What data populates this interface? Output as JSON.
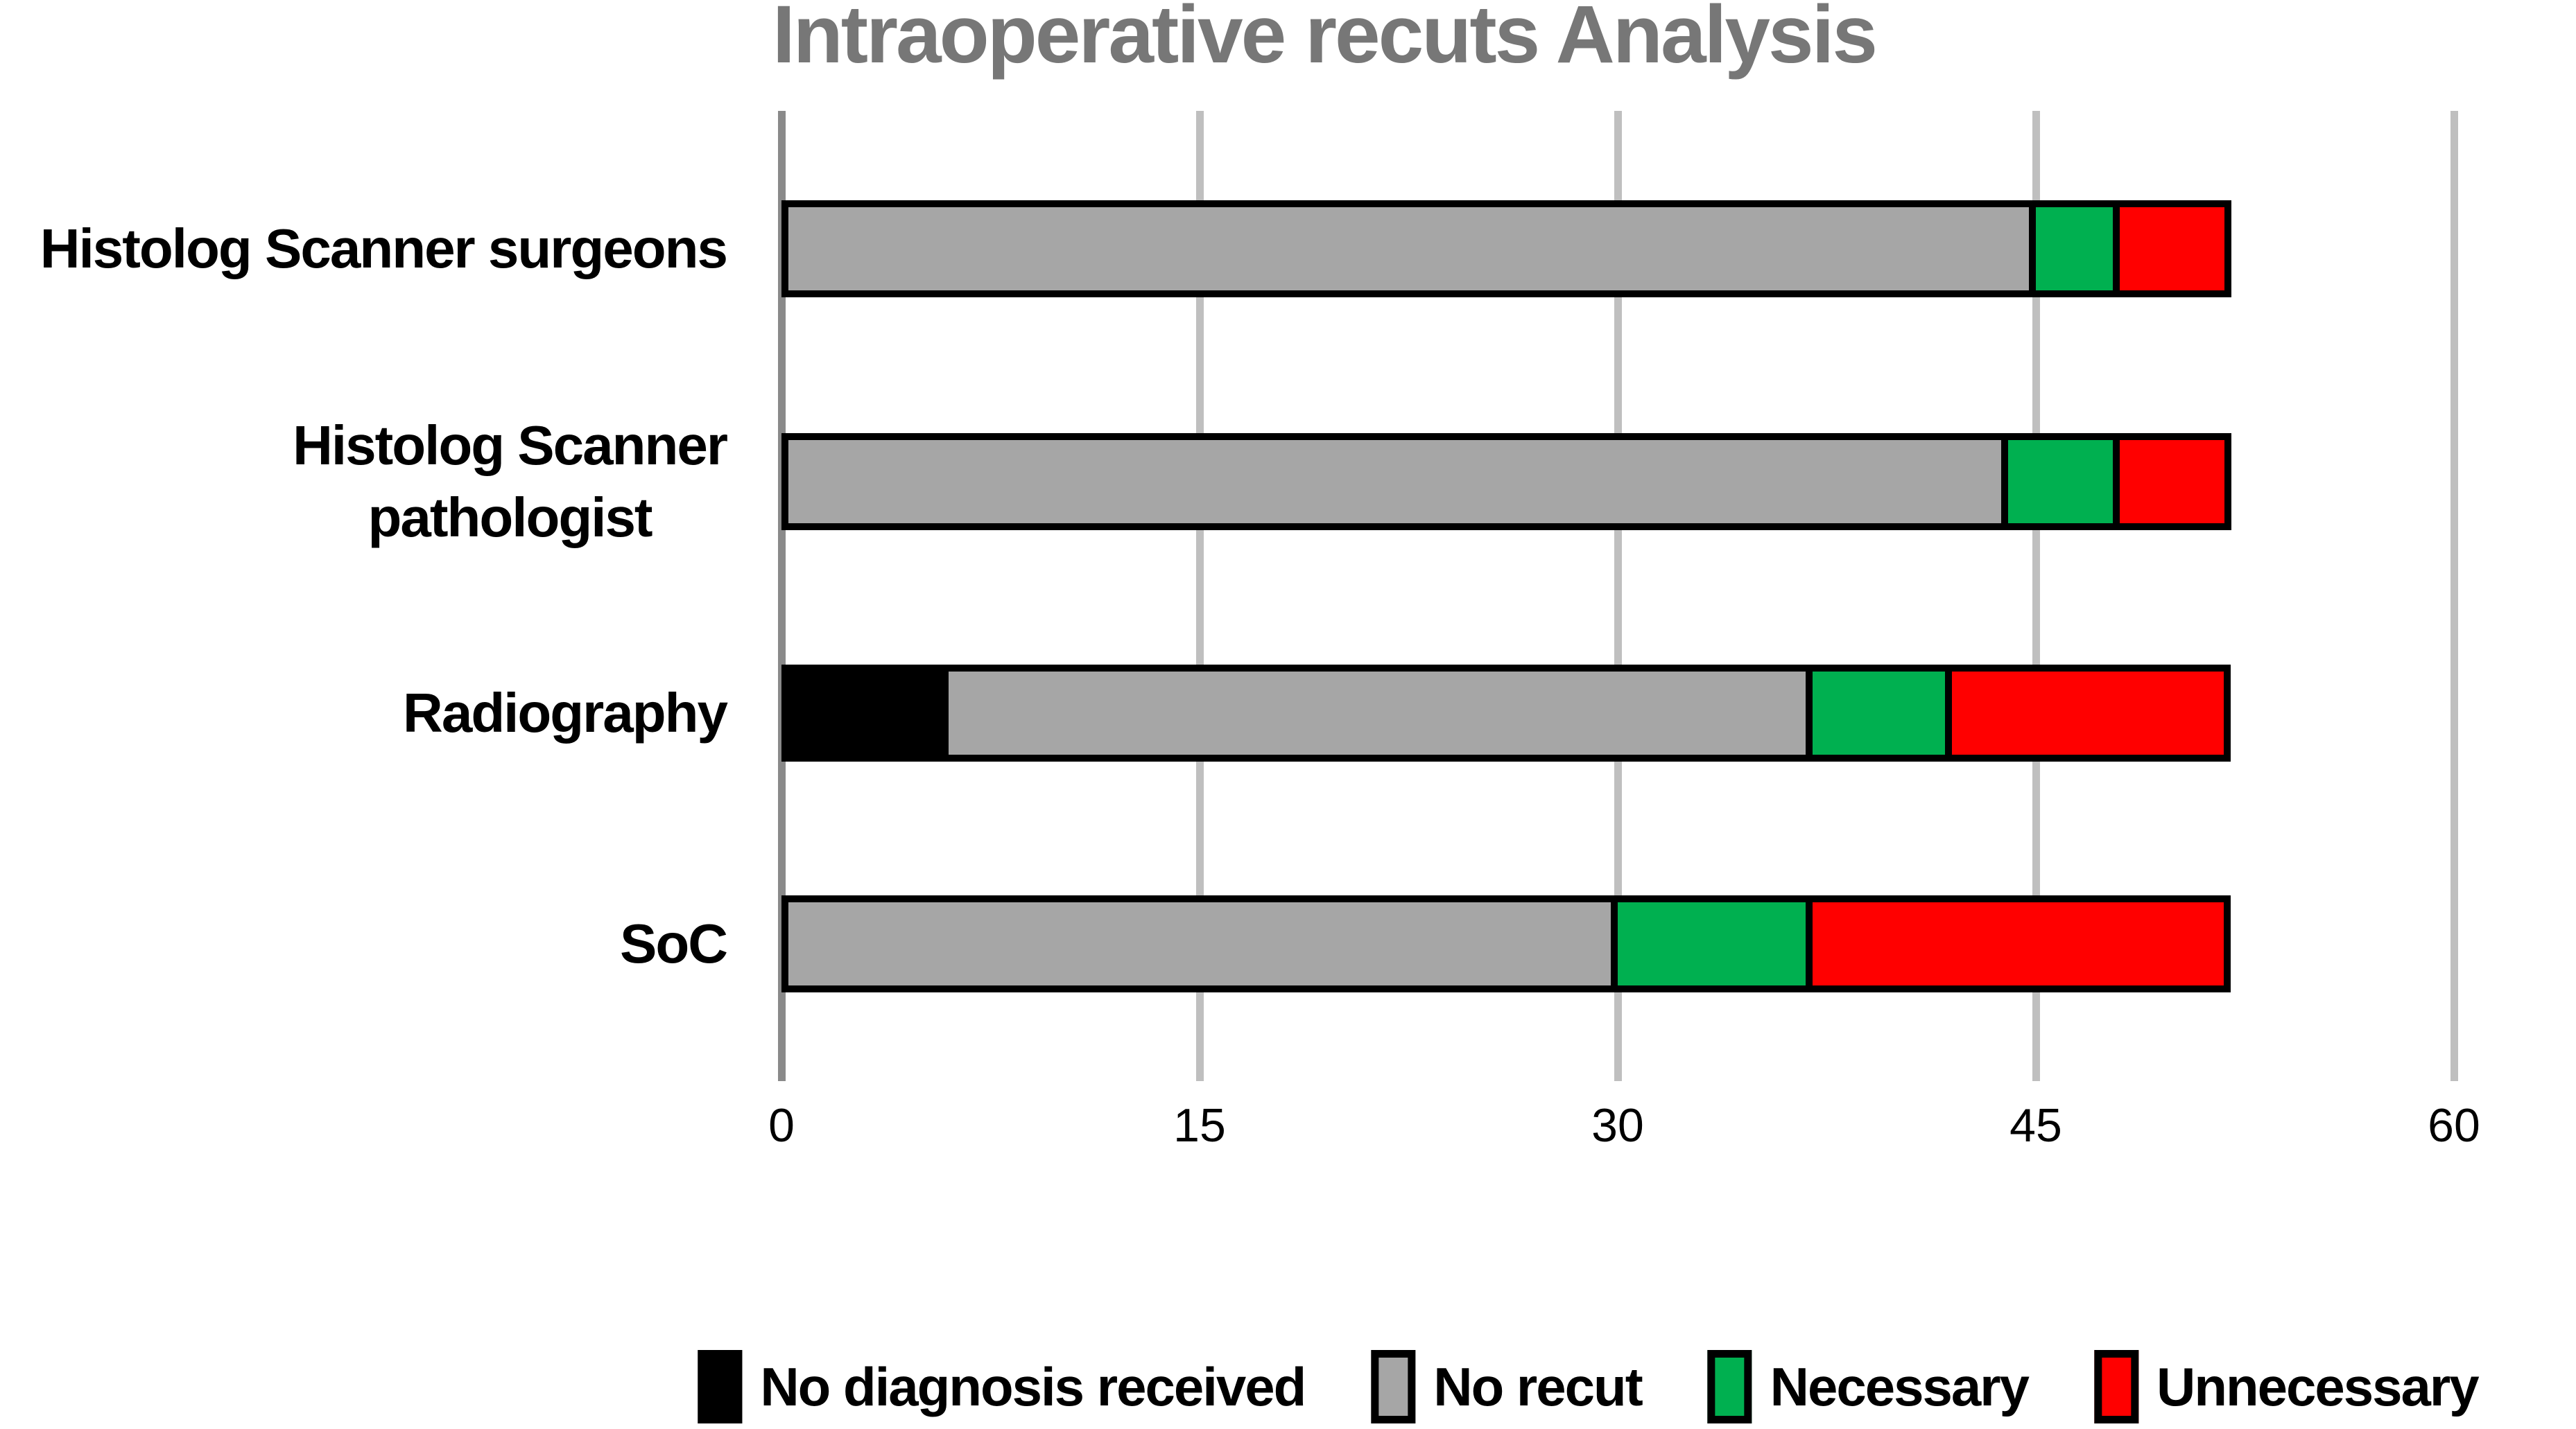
{
  "title": "Intraoperative recuts Analysis",
  "chart_data": {
    "type": "bar",
    "orientation": "horizontal",
    "stacked": true,
    "title": "Intraoperative recuts Analysis",
    "categories": [
      "Histolog Scanner surgeons",
      "Histolog Scanner pathologist",
      "Radiography",
      "SoC"
    ],
    "category_display_lines": [
      [
        "Histolog Scanner surgeons"
      ],
      [
        "Histolog Scanner",
        "pathologist"
      ],
      [
        "Radiography"
      ],
      [
        "SoC"
      ]
    ],
    "series": [
      {
        "name": "No diagnosis received",
        "color": "#000000",
        "values": [
          0,
          0,
          6,
          0
        ]
      },
      {
        "name": "No recut",
        "color": "#A6A6A6",
        "values": [
          45,
          44,
          31,
          30
        ]
      },
      {
        "name": "Necessary",
        "color": "#00B050",
        "values": [
          3,
          4,
          5,
          7
        ]
      },
      {
        "name": "Unnecessary",
        "color": "#FF0000",
        "values": [
          4,
          4,
          10,
          15
        ]
      }
    ],
    "totals": [
      52,
      52,
      52,
      52
    ],
    "x_ticks": [
      0,
      15,
      30,
      45,
      60
    ],
    "xlim": [
      0,
      63
    ],
    "grid": true,
    "legend_position": "bottom",
    "colors": {
      "grid_line": "#BFBFBF",
      "axis_line": "#8A8A8A",
      "title_text": "#777777",
      "tick_text": "#000000",
      "segment_border": "#000000",
      "background": "#FFFFFF"
    }
  }
}
